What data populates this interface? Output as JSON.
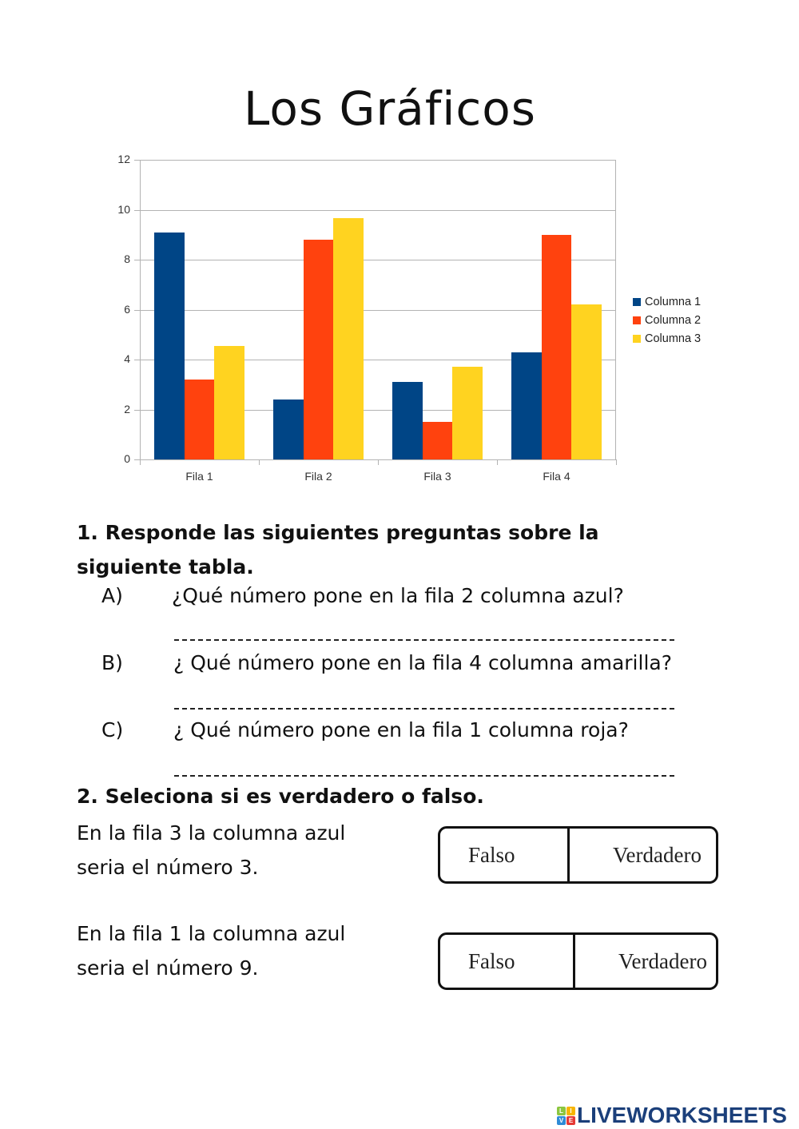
{
  "page": {
    "title": "Los Gráficos"
  },
  "chart_data": {
    "type": "bar",
    "title": "",
    "xlabel": "",
    "ylabel": "",
    "categories": [
      "Fila 1",
      "Fila 2",
      "Fila 3",
      "Fila 4"
    ],
    "series": [
      {
        "name": "Columna 1",
        "color": "#004586",
        "values": [
          9.1,
          2.4,
          3.1,
          4.3
        ]
      },
      {
        "name": "Columna 2",
        "color": "#ff420e",
        "values": [
          3.2,
          8.8,
          1.5,
          9
        ]
      },
      {
        "name": "Columna 3",
        "color": "#ffd320",
        "values": [
          4.54,
          9.65,
          3.7,
          6.2
        ]
      }
    ],
    "ylim": [
      0,
      12
    ],
    "yticks": [
      "0",
      "2",
      "4",
      "6",
      "8",
      "10",
      "12"
    ],
    "grid": true,
    "legend_position": "right"
  },
  "section1": {
    "heading": "1. Responde las siguientes preguntas sobre la siguiente tabla.",
    "questions": [
      {
        "letter": "A)",
        "text": "¿Qué número pone en la fila 2 columna azul?",
        "answer": ""
      },
      {
        "letter": "B)",
        "text": "¿ Qué número pone en la fila 4 columna amarilla?",
        "answer": ""
      },
      {
        "letter": "C)",
        "text": "¿ Qué número pone en la fila 1 columna roja?",
        "answer": ""
      }
    ]
  },
  "section2": {
    "heading": "2.  Seleciona si es verdadero o falso.",
    "statements": [
      {
        "line1": "En la fila 3 la columna azul",
        "line2": "seria el número 3.",
        "option_false": "Falso",
        "option_true": "Verdadero"
      },
      {
        "line1": "En la fila 1 la columna azul",
        "line2": "seria el número 9.",
        "option_false": "Falso",
        "option_true": "Verdadero"
      }
    ]
  },
  "brand": {
    "logo_letters": [
      "L",
      "I",
      "V",
      "E"
    ],
    "logo_colors": [
      "#8cc63f",
      "#f7b500",
      "#2e8bd6",
      "#e53935"
    ],
    "name": "LIVEWORKSHEETS"
  }
}
